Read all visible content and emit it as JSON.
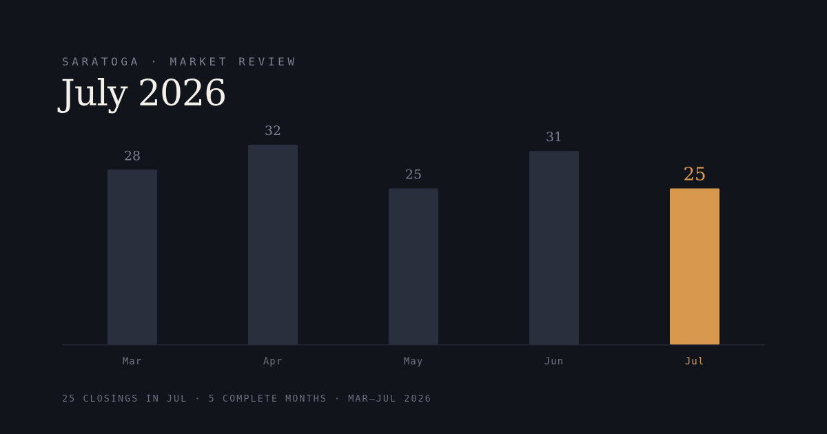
{
  "header": {
    "eyebrow": "SARATOGA · MARKET REVIEW",
    "title": "July 2026"
  },
  "footer": {
    "caption": "25 CLOSINGS IN JUL · 5 COMPLETE MONTHS · MAR–JUL 2026"
  },
  "colors": {
    "background": "#12141c",
    "bar": "#2a2f3e",
    "highlight": "#d8984e",
    "baseline": "#262a36"
  },
  "chart_data": {
    "type": "bar",
    "categories": [
      "Mar",
      "Apr",
      "May",
      "Jun",
      "Jul"
    ],
    "values": [
      28,
      32,
      25,
      31,
      25
    ],
    "highlight_index": 4,
    "ylim": [
      0,
      32
    ],
    "grid": false,
    "legend": "none"
  }
}
